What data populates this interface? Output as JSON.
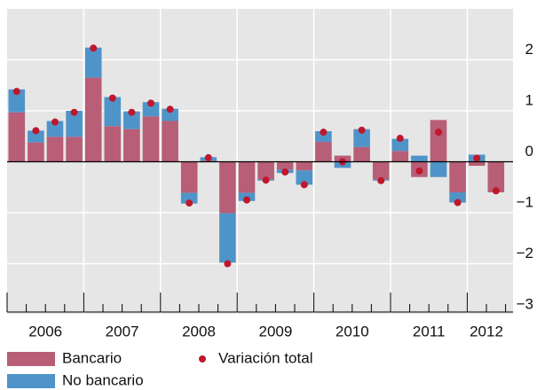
{
  "chart_data": {
    "type": "bar",
    "categories": [
      null,
      null,
      null,
      null,
      null,
      null,
      null,
      null,
      null,
      null,
      null,
      null,
      null,
      null,
      null,
      null,
      null,
      null,
      null,
      null,
      null,
      null,
      null,
      null,
      null,
      null
    ],
    "year_labels": [
      "2006",
      "2007",
      "2008",
      "2009",
      "2010",
      "2011",
      "2012"
    ],
    "series": [
      {
        "name": "Bancario",
        "color": "#b85e77",
        "values": [
          0.97,
          0.38,
          0.49,
          0.49,
          1.65,
          0.7,
          0.64,
          0.89,
          0.8,
          -0.61,
          0.02,
          -1.01,
          -0.61,
          -0.35,
          -0.15,
          -0.17,
          0.39,
          0.12,
          0.29,
          -0.35,
          0.21,
          -0.3,
          0.82,
          -0.6,
          -0.08,
          -0.6
        ]
      },
      {
        "name": "No bancario",
        "color": "#4f94c9",
        "values": [
          0.45,
          0.23,
          0.31,
          0.51,
          0.59,
          0.57,
          0.35,
          0.28,
          0.24,
          -0.21,
          0.07,
          -0.97,
          -0.16,
          -0.02,
          -0.07,
          -0.28,
          0.21,
          -0.12,
          0.35,
          -0.02,
          0.24,
          0.12,
          -0.3,
          -0.2,
          0.14,
          0.0
        ]
      },
      {
        "name": "Variación total",
        "type": "scatter",
        "color": "#c0172b",
        "values": [
          1.38,
          0.61,
          0.78,
          0.97,
          2.23,
          1.25,
          0.97,
          1.15,
          1.03,
          -0.81,
          0.08,
          -2.0,
          -0.75,
          -0.36,
          -0.2,
          -0.45,
          0.58,
          0.0,
          0.62,
          -0.37,
          0.46,
          -0.18,
          0.58,
          -0.8,
          0.07,
          -0.57
        ]
      }
    ],
    "ylim": [
      -3,
      3
    ],
    "yticks": [
      {
        "value": -3,
        "label": "−3"
      },
      {
        "value": -2,
        "label": "−2"
      },
      {
        "value": -1,
        "label": "−1"
      },
      0,
      1,
      2
    ],
    "grid": true
  }
}
